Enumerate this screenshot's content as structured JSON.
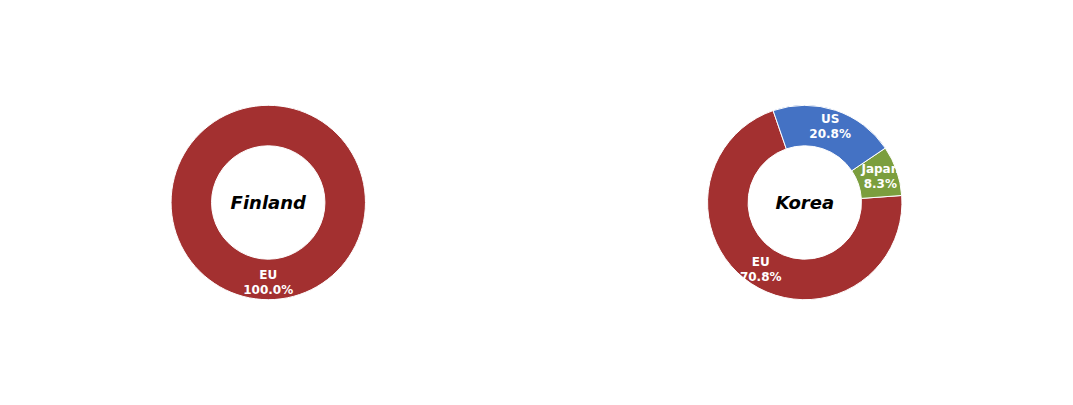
{
  "chart_data": [
    {
      "type": "pie",
      "title": "Finland",
      "categories": [
        "EU"
      ],
      "values": [
        100.0
      ],
      "value_labels": [
        "100.0%"
      ],
      "colors": [
        "#A33030"
      ],
      "data_labels": true
    },
    {
      "type": "pie",
      "title": "Korea",
      "categories": [
        "EU",
        "Japan",
        "US"
      ],
      "values": [
        70.8,
        8.3,
        20.8
      ],
      "value_labels": [
        "70.8%",
        "8.3%",
        "20.8%"
      ],
      "colors": [
        "#A33030",
        "#7B9E3E",
        "#4472C4"
      ],
      "data_labels": true
    }
  ]
}
